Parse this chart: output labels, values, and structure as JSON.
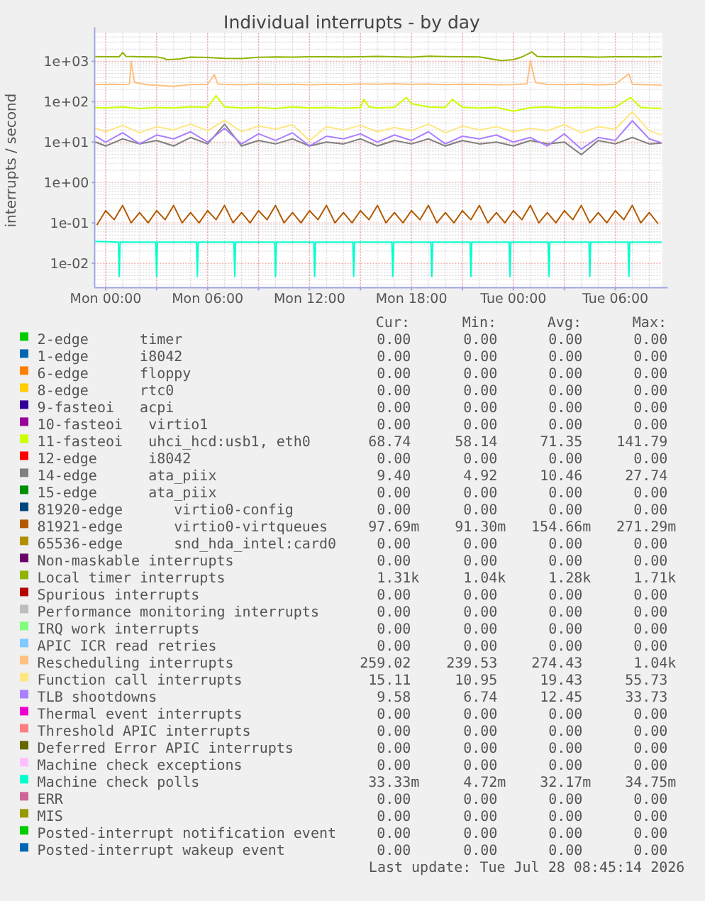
{
  "chart_data": {
    "type": "line",
    "title": "Individual interrupts - by day",
    "ylabel": "interrupts / second",
    "log": "y",
    "grid": true,
    "legend": "bottom",
    "xlim": [
      "2026-07-26T23:21",
      "2026-07-28T08:45"
    ],
    "xticks": [
      {
        "value": "2026-07-27T00:00",
        "label": "Mon 00:00"
      },
      {
        "value": "2026-07-27T03:00",
        "label": null
      },
      {
        "value": "2026-07-27T06:00",
        "label": "Mon 06:00"
      },
      {
        "value": "2026-07-27T09:00",
        "label": null
      },
      {
        "value": "2026-07-27T12:00",
        "label": "Mon 12:00"
      },
      {
        "value": "2026-07-27T15:00",
        "label": null
      },
      {
        "value": "2026-07-27T18:00",
        "label": "Mon 18:00"
      },
      {
        "value": "2026-07-27T21:00",
        "label": null
      },
      {
        "value": "2026-07-28T00:00",
        "label": "Tue 00:00"
      },
      {
        "value": "2026-07-28T03:00",
        "label": null
      },
      {
        "value": "2026-07-28T06:00",
        "label": "Tue 06:00"
      }
    ],
    "ylim": [
      0.0025,
      5000
    ],
    "yticks": [
      {
        "value": 0.01,
        "label": "1e-02"
      },
      {
        "value": 0.1,
        "label": "1e-01"
      },
      {
        "value": 1,
        "label": "1e+00"
      },
      {
        "value": 10,
        "label": "1e+01"
      },
      {
        "value": 100,
        "label": "1e+02"
      },
      {
        "value": 1000,
        "label": "1e+03"
      }
    ],
    "series": [
      {
        "name": "2-edge      timer",
        "color": "#00cc00"
      },
      {
        "name": "1-edge      i8042",
        "color": "#0066b3"
      },
      {
        "name": "6-edge      floppy",
        "color": "#ff8000"
      },
      {
        "name": "8-edge      rtc0",
        "color": "#ffcc00"
      },
      {
        "name": "9-fasteoi   acpi",
        "color": "#330099"
      },
      {
        "name": "10-fasteoi   virtio1",
        "color": "#990099"
      },
      {
        "name": "11-fasteoi   uhci_hcd:usb1, eth0",
        "color": "#ccff00",
        "x": [
          "2026-07-26T23:24",
          "2026-07-27T00:00",
          "2026-07-27T01:00",
          "2026-07-27T02:00",
          "2026-07-27T03:00",
          "2026-07-27T04:00",
          "2026-07-27T05:00",
          "2026-07-27T06:00",
          "2026-07-27T06:30",
          "2026-07-27T07:00",
          "2026-07-27T08:00",
          "2026-07-27T09:00",
          "2026-07-27T10:00",
          "2026-07-27T11:00",
          "2026-07-27T12:00",
          "2026-07-27T13:00",
          "2026-07-27T14:00",
          "2026-07-27T15:00",
          "2026-07-27T15:12",
          "2026-07-27T15:30",
          "2026-07-27T16:00",
          "2026-07-27T17:00",
          "2026-07-27T17:42",
          "2026-07-27T18:00",
          "2026-07-27T19:00",
          "2026-07-27T20:00",
          "2026-07-27T20:24",
          "2026-07-27T21:00",
          "2026-07-27T22:00",
          "2026-07-27T23:00",
          "2026-07-28T00:00",
          "2026-07-28T01:00",
          "2026-07-28T02:00",
          "2026-07-28T03:00",
          "2026-07-28T04:00",
          "2026-07-28T05:00",
          "2026-07-28T06:00",
          "2026-07-28T06:54",
          "2026-07-28T07:30",
          "2026-07-28T08:00",
          "2026-07-28T08:42"
        ],
        "values": [
          72,
          70,
          74,
          68,
          72,
          70,
          75,
          73,
          141,
          74,
          70,
          72,
          68,
          74,
          70,
          72,
          69,
          71,
          115,
          74,
          70,
          73,
          127,
          90,
          74,
          72,
          115,
          73,
          70,
          72,
          58,
          71,
          74,
          70,
          72,
          70,
          73,
          127,
          72,
          70,
          68.7
        ]
      },
      {
        "name": "12-edge      i8042",
        "color": "#ff0000"
      },
      {
        "name": "14-edge      ata_piix",
        "color": "#808080",
        "x": [
          "2026-07-26T23:24",
          "2026-07-27T00:00",
          "2026-07-27T01:00",
          "2026-07-27T02:00",
          "2026-07-27T03:00",
          "2026-07-27T04:00",
          "2026-07-27T05:00",
          "2026-07-27T06:00",
          "2026-07-27T07:00",
          "2026-07-27T08:00",
          "2026-07-27T09:00",
          "2026-07-27T10:00",
          "2026-07-27T11:00",
          "2026-07-27T12:00",
          "2026-07-27T13:00",
          "2026-07-27T14:00",
          "2026-07-27T15:00",
          "2026-07-27T16:00",
          "2026-07-27T17:00",
          "2026-07-27T18:00",
          "2026-07-27T19:00",
          "2026-07-27T20:00",
          "2026-07-27T21:00",
          "2026-07-27T22:00",
          "2026-07-27T23:00",
          "2026-07-28T00:00",
          "2026-07-28T01:00",
          "2026-07-28T02:00",
          "2026-07-28T03:00",
          "2026-07-28T04:00",
          "2026-07-28T05:00",
          "2026-07-28T06:00",
          "2026-07-28T07:00",
          "2026-07-28T08:00",
          "2026-07-28T08:42"
        ],
        "values": [
          10,
          8,
          12,
          9,
          11,
          8,
          13,
          9,
          27.7,
          8,
          11,
          9,
          12,
          8,
          10,
          9,
          12,
          8,
          11,
          9,
          12,
          8,
          11,
          9,
          10,
          8,
          11,
          9,
          10,
          4.9,
          11,
          9,
          13,
          9,
          9.4
        ]
      },
      {
        "name": "15-edge      ata_piix",
        "color": "#008f00"
      },
      {
        "name": "81920-edge      virtio0-config",
        "color": "#00487d"
      },
      {
        "name": "81921-edge      virtio0-virtqueues",
        "color": "#b35a00",
        "x": [
          "2026-07-26T23:30",
          "2026-07-27T00:00",
          "2026-07-27T00:30",
          "2026-07-27T01:00",
          "2026-07-27T01:30",
          "2026-07-27T02:00",
          "2026-07-27T02:30",
          "2026-07-27T03:00",
          "2026-07-27T03:30",
          "2026-07-27T04:00",
          "2026-07-27T04:30",
          "2026-07-27T05:00",
          "2026-07-27T05:30",
          "2026-07-27T06:00",
          "2026-07-27T06:30",
          "2026-07-27T07:00",
          "2026-07-27T07:30",
          "2026-07-27T08:00",
          "2026-07-27T08:30",
          "2026-07-27T09:00",
          "2026-07-27T09:30",
          "2026-07-27T10:00",
          "2026-07-27T10:30",
          "2026-07-27T11:00",
          "2026-07-27T11:30",
          "2026-07-27T12:00",
          "2026-07-27T12:30",
          "2026-07-27T13:00",
          "2026-07-27T13:30",
          "2026-07-27T14:00",
          "2026-07-27T14:30",
          "2026-07-27T15:00",
          "2026-07-27T15:30",
          "2026-07-27T16:00",
          "2026-07-27T16:30",
          "2026-07-27T17:00",
          "2026-07-27T17:30",
          "2026-07-27T18:00",
          "2026-07-27T18:30",
          "2026-07-27T19:00",
          "2026-07-27T19:30",
          "2026-07-27T20:00",
          "2026-07-27T20:30",
          "2026-07-27T21:00",
          "2026-07-27T21:30",
          "2026-07-27T22:00",
          "2026-07-27T22:30",
          "2026-07-27T23:00",
          "2026-07-27T23:30",
          "2026-07-28T00:00",
          "2026-07-28T00:30",
          "2026-07-28T01:00",
          "2026-07-28T01:30",
          "2026-07-28T02:00",
          "2026-07-28T02:30",
          "2026-07-28T03:00",
          "2026-07-28T03:30",
          "2026-07-28T04:00",
          "2026-07-28T04:30",
          "2026-07-28T05:00",
          "2026-07-28T05:30",
          "2026-07-28T06:00",
          "2026-07-28T06:30",
          "2026-07-28T07:00",
          "2026-07-28T07:30",
          "2026-07-28T08:00",
          "2026-07-28T08:30"
        ],
        "values": [
          0.0913,
          0.2,
          0.12,
          0.27,
          0.1,
          0.18,
          0.1,
          0.2,
          0.12,
          0.27,
          0.1,
          0.18,
          0.1,
          0.2,
          0.12,
          0.27,
          0.1,
          0.18,
          0.1,
          0.2,
          0.12,
          0.27,
          0.1,
          0.18,
          0.1,
          0.2,
          0.12,
          0.27,
          0.1,
          0.18,
          0.1,
          0.2,
          0.12,
          0.27,
          0.1,
          0.18,
          0.1,
          0.2,
          0.12,
          0.27,
          0.1,
          0.18,
          0.1,
          0.2,
          0.12,
          0.27,
          0.1,
          0.18,
          0.1,
          0.2,
          0.12,
          0.27,
          0.1,
          0.18,
          0.1,
          0.2,
          0.12,
          0.27,
          0.1,
          0.18,
          0.1,
          0.2,
          0.12,
          0.27,
          0.1,
          0.18,
          0.0977
        ]
      },
      {
        "name": "65536-edge      snd_hda_intel:card0",
        "color": "#b38f00"
      },
      {
        "name": "Non-maskable interrupts",
        "color": "#6b006b"
      },
      {
        "name": "Local timer interrupts",
        "color": "#8fb300",
        "x": [
          "2026-07-26T23:24",
          "2026-07-27T00:00",
          "2026-07-27T00:48",
          "2026-07-27T01:00",
          "2026-07-27T01:12",
          "2026-07-27T02:00",
          "2026-07-27T03:00",
          "2026-07-27T03:24",
          "2026-07-27T03:36",
          "2026-07-27T04:24",
          "2026-07-27T05:00",
          "2026-07-27T06:00",
          "2026-07-27T07:00",
          "2026-07-27T08:00",
          "2026-07-27T09:00",
          "2026-07-27T10:00",
          "2026-07-27T11:00",
          "2026-07-27T12:00",
          "2026-07-27T13:00",
          "2026-07-27T14:00",
          "2026-07-27T15:00",
          "2026-07-27T16:00",
          "2026-07-27T17:00",
          "2026-07-27T18:00",
          "2026-07-27T19:00",
          "2026-07-27T20:00",
          "2026-07-27T21:00",
          "2026-07-27T22:00",
          "2026-07-27T22:48",
          "2026-07-27T23:18",
          "2026-07-28T00:00",
          "2026-07-28T00:30",
          "2026-07-28T01:06",
          "2026-07-28T01:24",
          "2026-07-28T02:00",
          "2026-07-28T03:00",
          "2026-07-28T04:00",
          "2026-07-28T05:00",
          "2026-07-28T06:00",
          "2026-07-28T07:00",
          "2026-07-28T08:00",
          "2026-07-28T08:42"
        ],
        "values": [
          1310,
          1300,
          1300,
          1650,
          1320,
          1290,
          1280,
          1200,
          1090,
          1150,
          1270,
          1250,
          1180,
          1170,
          1260,
          1280,
          1270,
          1300,
          1290,
          1280,
          1290,
          1320,
          1300,
          1270,
          1330,
          1310,
          1300,
          1280,
          1120,
          1040,
          1100,
          1280,
          1710,
          1320,
          1300,
          1290,
          1300,
          1270,
          1290,
          1300,
          1280,
          1310
        ]
      },
      {
        "name": "Spurious interrupts",
        "color": "#b30000"
      },
      {
        "name": "Performance monitoring interrupts",
        "color": "#bebebe"
      },
      {
        "name": "IRQ work interrupts",
        "color": "#80ff80"
      },
      {
        "name": "APIC ICR read retries",
        "color": "#80c9ff"
      },
      {
        "name": "Rescheduling interrupts",
        "color": "#ffc080",
        "x": [
          "2026-07-26T23:24",
          "2026-07-27T00:00",
          "2026-07-27T01:00",
          "2026-07-27T01:24",
          "2026-07-27T01:30",
          "2026-07-27T01:42",
          "2026-07-27T02:30",
          "2026-07-27T04:00",
          "2026-07-27T05:00",
          "2026-07-27T06:00",
          "2026-07-27T06:24",
          "2026-07-27T06:36",
          "2026-07-27T07:00",
          "2026-07-27T08:00",
          "2026-07-27T09:00",
          "2026-07-27T10:00",
          "2026-07-27T11:00",
          "2026-07-27T12:00",
          "2026-07-27T13:00",
          "2026-07-27T14:00",
          "2026-07-27T15:00",
          "2026-07-27T16:00",
          "2026-07-27T17:00",
          "2026-07-27T18:00",
          "2026-07-27T19:00",
          "2026-07-27T20:00",
          "2026-07-27T21:00",
          "2026-07-27T22:00",
          "2026-07-27T23:00",
          "2026-07-28T00:00",
          "2026-07-28T00:48",
          "2026-07-28T01:00",
          "2026-07-28T01:18",
          "2026-07-28T02:00",
          "2026-07-28T03:00",
          "2026-07-28T04:00",
          "2026-07-28T05:00",
          "2026-07-28T06:00",
          "2026-07-28T06:48",
          "2026-07-28T07:00",
          "2026-07-28T08:00",
          "2026-07-28T08:42"
        ],
        "values": [
          265,
          270,
          268,
          270,
          1000,
          300,
          262,
          240,
          265,
          270,
          470,
          275,
          268,
          262,
          272,
          266,
          270,
          262,
          270,
          265,
          275,
          270,
          280,
          268,
          272,
          265,
          270,
          268,
          262,
          265,
          275,
          1040,
          300,
          268,
          265,
          270,
          262,
          270,
          490,
          270,
          262,
          259
        ]
      },
      {
        "name": "Function call interrupts",
        "color": "#ffe680",
        "x": [
          "2026-07-26T23:24",
          "2026-07-27T00:00",
          "2026-07-27T01:00",
          "2026-07-27T02:00",
          "2026-07-27T03:00",
          "2026-07-27T04:00",
          "2026-07-27T05:00",
          "2026-07-27T06:00",
          "2026-07-27T07:00",
          "2026-07-27T08:00",
          "2026-07-27T09:00",
          "2026-07-27T10:00",
          "2026-07-27T11:00",
          "2026-07-27T12:00",
          "2026-07-27T13:00",
          "2026-07-27T14:00",
          "2026-07-27T15:00",
          "2026-07-27T16:00",
          "2026-07-27T17:00",
          "2026-07-27T18:00",
          "2026-07-27T19:00",
          "2026-07-27T20:00",
          "2026-07-27T21:00",
          "2026-07-27T22:00",
          "2026-07-27T23:00",
          "2026-07-28T00:00",
          "2026-07-28T01:00",
          "2026-07-28T02:00",
          "2026-07-28T03:00",
          "2026-07-28T04:00",
          "2026-07-28T05:00",
          "2026-07-28T06:00",
          "2026-07-28T07:00",
          "2026-07-28T08:00",
          "2026-07-28T08:42"
        ],
        "values": [
          22,
          18,
          26,
          17,
          24,
          20,
          28,
          19,
          35,
          18,
          25,
          21,
          27,
          11,
          24,
          20,
          26,
          18,
          23,
          19,
          28,
          17,
          25,
          20,
          24,
          18,
          22,
          19,
          27,
          17,
          24,
          21,
          55.7,
          19,
          15.1
        ]
      },
      {
        "name": "TLB shootdowns",
        "color": "#aa80ff",
        "x": [
          "2026-07-26T23:24",
          "2026-07-27T00:00",
          "2026-07-27T01:00",
          "2026-07-27T02:00",
          "2026-07-27T03:00",
          "2026-07-27T04:00",
          "2026-07-27T05:00",
          "2026-07-27T06:00",
          "2026-07-27T07:00",
          "2026-07-27T08:00",
          "2026-07-27T09:00",
          "2026-07-27T10:00",
          "2026-07-27T11:00",
          "2026-07-27T12:00",
          "2026-07-27T13:00",
          "2026-07-27T14:00",
          "2026-07-27T15:00",
          "2026-07-27T16:00",
          "2026-07-27T17:00",
          "2026-07-27T18:00",
          "2026-07-27T19:00",
          "2026-07-27T20:00",
          "2026-07-27T21:00",
          "2026-07-27T22:00",
          "2026-07-27T23:00",
          "2026-07-28T00:00",
          "2026-07-28T01:00",
          "2026-07-28T02:00",
          "2026-07-28T03:00",
          "2026-07-28T04:00",
          "2026-07-28T05:00",
          "2026-07-28T06:00",
          "2026-07-28T07:00",
          "2026-07-28T08:00",
          "2026-07-28T08:42"
        ],
        "values": [
          14,
          10,
          17,
          9,
          15,
          12,
          18,
          10,
          22,
          9,
          16,
          11,
          17,
          8,
          14,
          12,
          16,
          10,
          15,
          11,
          18,
          9,
          14,
          12,
          15,
          10,
          13,
          8,
          16,
          6.7,
          13,
          11,
          33.7,
          12,
          9.6
        ]
      },
      {
        "name": "Thermal event interrupts",
        "color": "#ee00cc"
      },
      {
        "name": "Threshold APIC interrupts",
        "color": "#ff8080"
      },
      {
        "name": "Deferred Error APIC interrupts",
        "color": "#666600"
      },
      {
        "name": "Machine check exceptions",
        "color": "#ffbfff"
      },
      {
        "name": "Machine check polls",
        "color": "#00ffcc",
        "x": [
          "2026-07-26T23:24",
          "2026-07-27T00:45",
          "2026-07-27T00:48",
          "2026-07-27T00:51",
          "2026-07-27T02:57",
          "2026-07-27T03:00",
          "2026-07-27T03:03",
          "2026-07-27T05:21",
          "2026-07-27T05:24",
          "2026-07-27T05:27",
          "2026-07-27T07:33",
          "2026-07-27T07:36",
          "2026-07-27T07:39",
          "2026-07-27T09:57",
          "2026-07-27T10:00",
          "2026-07-27T10:03",
          "2026-07-27T12:15",
          "2026-07-27T12:18",
          "2026-07-27T12:21",
          "2026-07-27T14:33",
          "2026-07-27T14:36",
          "2026-07-27T14:39",
          "2026-07-27T16:51",
          "2026-07-27T16:54",
          "2026-07-27T16:57",
          "2026-07-27T19:09",
          "2026-07-27T19:12",
          "2026-07-27T19:15",
          "2026-07-27T21:27",
          "2026-07-27T21:30",
          "2026-07-27T21:33",
          "2026-07-27T23:45",
          "2026-07-27T23:48",
          "2026-07-27T23:51",
          "2026-07-28T02:03",
          "2026-07-28T02:06",
          "2026-07-28T02:09",
          "2026-07-28T04:27",
          "2026-07-28T04:30",
          "2026-07-28T04:33",
          "2026-07-28T06:45",
          "2026-07-28T06:48",
          "2026-07-28T06:51",
          "2026-07-28T08:42"
        ],
        "values": [
          0.0347,
          0.0333,
          0.0047,
          0.0333,
          0.0333,
          0.0047,
          0.0333,
          0.0333,
          0.0047,
          0.0333,
          0.0333,
          0.0047,
          0.0333,
          0.0333,
          0.0047,
          0.0333,
          0.0333,
          0.0047,
          0.0333,
          0.0333,
          0.0047,
          0.0333,
          0.0333,
          0.0047,
          0.0333,
          0.0333,
          0.0047,
          0.0333,
          0.0333,
          0.0047,
          0.0333,
          0.0333,
          0.0047,
          0.0333,
          0.0333,
          0.0047,
          0.0333,
          0.0333,
          0.0047,
          0.0333,
          0.0333,
          0.0047,
          0.0333,
          0.0333
        ]
      },
      {
        "name": "ERR",
        "color": "#cc6699"
      },
      {
        "name": "MIS",
        "color": "#999900"
      },
      {
        "name": "Posted-interrupt notification event",
        "color": "#00cc00"
      },
      {
        "name": "Posted-interrupt wakeup event",
        "color": "#0066b3"
      }
    ],
    "annotations": [
      "Cur:",
      "Min:",
      "Avg:",
      "Max:",
      "0.00",
      "0.00",
      "0.00",
      "0.00",
      "0.00",
      "0.00",
      "0.00",
      "0.00",
      "0.00",
      "0.00",
      "0.00",
      "0.00",
      "0.00",
      "0.00",
      "0.00",
      "0.00",
      "0.00",
      "0.00",
      "0.00",
      "0.00",
      "0.00",
      "0.00",
      "0.00",
      "0.00",
      "68.74",
      "58.14",
      "71.35",
      "141.79",
      "0.00",
      "0.00",
      "0.00",
      "0.00",
      "9.40",
      "4.92",
      "10.46",
      "27.74",
      "0.00",
      "0.00",
      "0.00",
      "0.00",
      "0.00",
      "0.00",
      "0.00",
      "0.00",
      "97.69m",
      "91.30m",
      "154.66m",
      "271.29m",
      "0.00",
      "0.00",
      "0.00",
      "0.00",
      "0.00",
      "0.00",
      "0.00",
      "0.00",
      "1.31k",
      "1.04k",
      "1.28k",
      "1.71k",
      "0.00",
      "0.00",
      "0.00",
      "0.00",
      "0.00",
      "0.00",
      "0.00",
      "0.00",
      "0.00",
      "0.00",
      "0.00",
      "0.00",
      "0.00",
      "0.00",
      "0.00",
      "0.00",
      "259.02",
      "239.53",
      "274.43",
      "1.04k",
      "15.11",
      "10.95",
      "19.43",
      "55.73",
      "9.58",
      "6.74",
      "12.45",
      "33.73",
      "0.00",
      "0.00",
      "0.00",
      "0.00",
      "0.00",
      "0.00",
      "0.00",
      "0.00",
      "0.00",
      "0.00",
      "0.00",
      "0.00",
      "0.00",
      "0.00",
      "0.00",
      "0.00",
      "33.33m",
      "4.72m",
      "32.17m",
      "34.75m",
      "0.00",
      "0.00",
      "0.00",
      "0.00",
      "0.00",
      "0.00",
      "0.00",
      "0.00",
      "0.00",
      "0.00",
      "0.00",
      "0.00",
      "0.00",
      "0.00",
      "0.00",
      "0.00",
      "Last update: Tue Jul 28 08:45:14 2026"
    ]
  }
}
